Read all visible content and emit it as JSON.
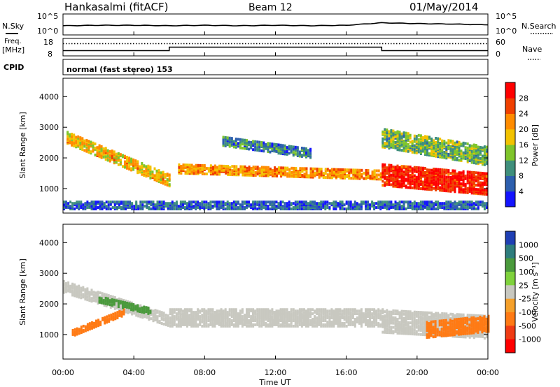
{
  "header": {
    "station": "Hankasalmi (fitACF)",
    "beam": "Beam 12",
    "date": "01/May/2014"
  },
  "noise_panel": {
    "left_label": "N.Sky",
    "right_label": "N.Search",
    "ticks_left": [
      "10^5",
      "10^0"
    ],
    "ticks_right": [
      "10^5",
      "10^0"
    ]
  },
  "freq_panel": {
    "left_label_1": "Freq.",
    "left_label_2": "[MHz]",
    "right_label": "Nave",
    "ticks_left": [
      "18",
      "8"
    ],
    "ticks_right": [
      "60",
      "0"
    ]
  },
  "cpid": {
    "label": "CPID",
    "text": "normal (fast stereo) 153"
  },
  "axes": {
    "xlabel": "Time UT",
    "ylabel_power": "Slant Range [km]",
    "ylabel_velocity": "Slant Range [km]",
    "xticks": [
      "00:00",
      "04:00",
      "08:00",
      "12:00",
      "16:00",
      "20:00",
      "00:00"
    ],
    "yticks": [
      "1000",
      "2000",
      "3000",
      "4000"
    ]
  },
  "colorbars": {
    "power": {
      "label": "Power [dB]",
      "ticks": [
        "4",
        "8",
        "12",
        "16",
        "20",
        "24",
        "28"
      ],
      "colors": [
        "#1414ff",
        "#2d5fae",
        "#3f8f7c",
        "#7fc52b",
        "#f2c200",
        "#ff8c00",
        "#f04000",
        "#ff0000"
      ]
    },
    "velocity": {
      "label": "Velocity [m s⁻¹]",
      "ticks": [
        "1000",
        "500",
        "100",
        "25",
        "-25",
        "-100",
        "-500",
        "-1000"
      ],
      "colors": [
        "#1f3fb4",
        "#2e7d7d",
        "#4a9a3c",
        "#7fd23c",
        "#c8c8c0",
        "#f5a02a",
        "#ff7a14",
        "#f03c14",
        "#ff0000"
      ]
    }
  },
  "chart_data": [
    {
      "type": "line",
      "title": "N.Sky / N.Search",
      "x": [
        0,
        2,
        4,
        6,
        8,
        10,
        12,
        14,
        16,
        18,
        20,
        22,
        24
      ],
      "series": [
        {
          "name": "N.Sky",
          "values": [
            2.2,
            2.3,
            2.3,
            2.2,
            2.3,
            2.2,
            2.3,
            2.2,
            2.3,
            2.9,
            2.7,
            2.6,
            2.4
          ]
        }
      ]
    },
    {
      "type": "line",
      "title": "Freq. / Nave",
      "x": [
        0,
        6,
        6,
        18,
        18,
        24
      ],
      "series": [
        {
          "name": "Freq.",
          "values": [
            11,
            11,
            13,
            13,
            11,
            11
          ]
        },
        {
          "name": "Nave",
          "values": [
            42,
            42,
            42,
            42,
            42,
            42
          ]
        }
      ]
    },
    {
      "type": "heatmap",
      "title": "Power [dB]",
      "xlabel": "Time UT",
      "ylabel": "Slant Range [km]",
      "xlim": [
        0,
        24
      ],
      "ylim": [
        200,
        4600
      ],
      "colorbar_range": [
        0,
        30
      ],
      "features": [
        {
          "t0": 0.2,
          "t1": 6.0,
          "r0": 2700,
          "r1": 1300,
          "w": 180,
          "power": 18
        },
        {
          "t0": 6.5,
          "t1": 18.0,
          "r0": 1700,
          "r1": 1500,
          "w": 150,
          "power": 20
        },
        {
          "t0": 18.0,
          "t1": 24.0,
          "r0": 1500,
          "r1": 1200,
          "w": 350,
          "power": 27
        },
        {
          "t0": 0.0,
          "t1": 24.0,
          "r0": 500,
          "r1": 500,
          "w": 120,
          "power": 6
        },
        {
          "t0": 9.0,
          "t1": 14.0,
          "r0": 2600,
          "r1": 2200,
          "w": 150,
          "power": 8
        },
        {
          "t0": 18.0,
          "t1": 24.0,
          "r0": 2700,
          "r1": 2100,
          "w": 300,
          "power": 12
        }
      ]
    },
    {
      "type": "heatmap",
      "title": "Velocity [m s-1]",
      "xlabel": "Time UT",
      "ylabel": "Slant Range [km]",
      "xlim": [
        0,
        24
      ],
      "ylim": [
        200,
        4600
      ],
      "colorbar_range": [
        -1000,
        1000
      ],
      "features": [
        {
          "t0": 0.0,
          "t1": 6.0,
          "r0": 2600,
          "r1": 1500,
          "w": 180,
          "v": 0
        },
        {
          "t0": 6.0,
          "t1": 18.0,
          "r0": 1600,
          "r1": 1600,
          "w": 280,
          "v": 0
        },
        {
          "t0": 18.0,
          "t1": 24.0,
          "r0": 1500,
          "r1": 1300,
          "w": 380,
          "v": 0
        },
        {
          "t0": 0.5,
          "t1": 3.5,
          "r0": 1100,
          "r1": 1800,
          "w": 100,
          "v": -300
        },
        {
          "t0": 20.5,
          "t1": 24.0,
          "r0": 1200,
          "r1": 1400,
          "w": 250,
          "v": -400
        },
        {
          "t0": 2.0,
          "t1": 5.0,
          "r0": 2200,
          "r1": 1800,
          "w": 100,
          "v": 200
        }
      ]
    }
  ]
}
